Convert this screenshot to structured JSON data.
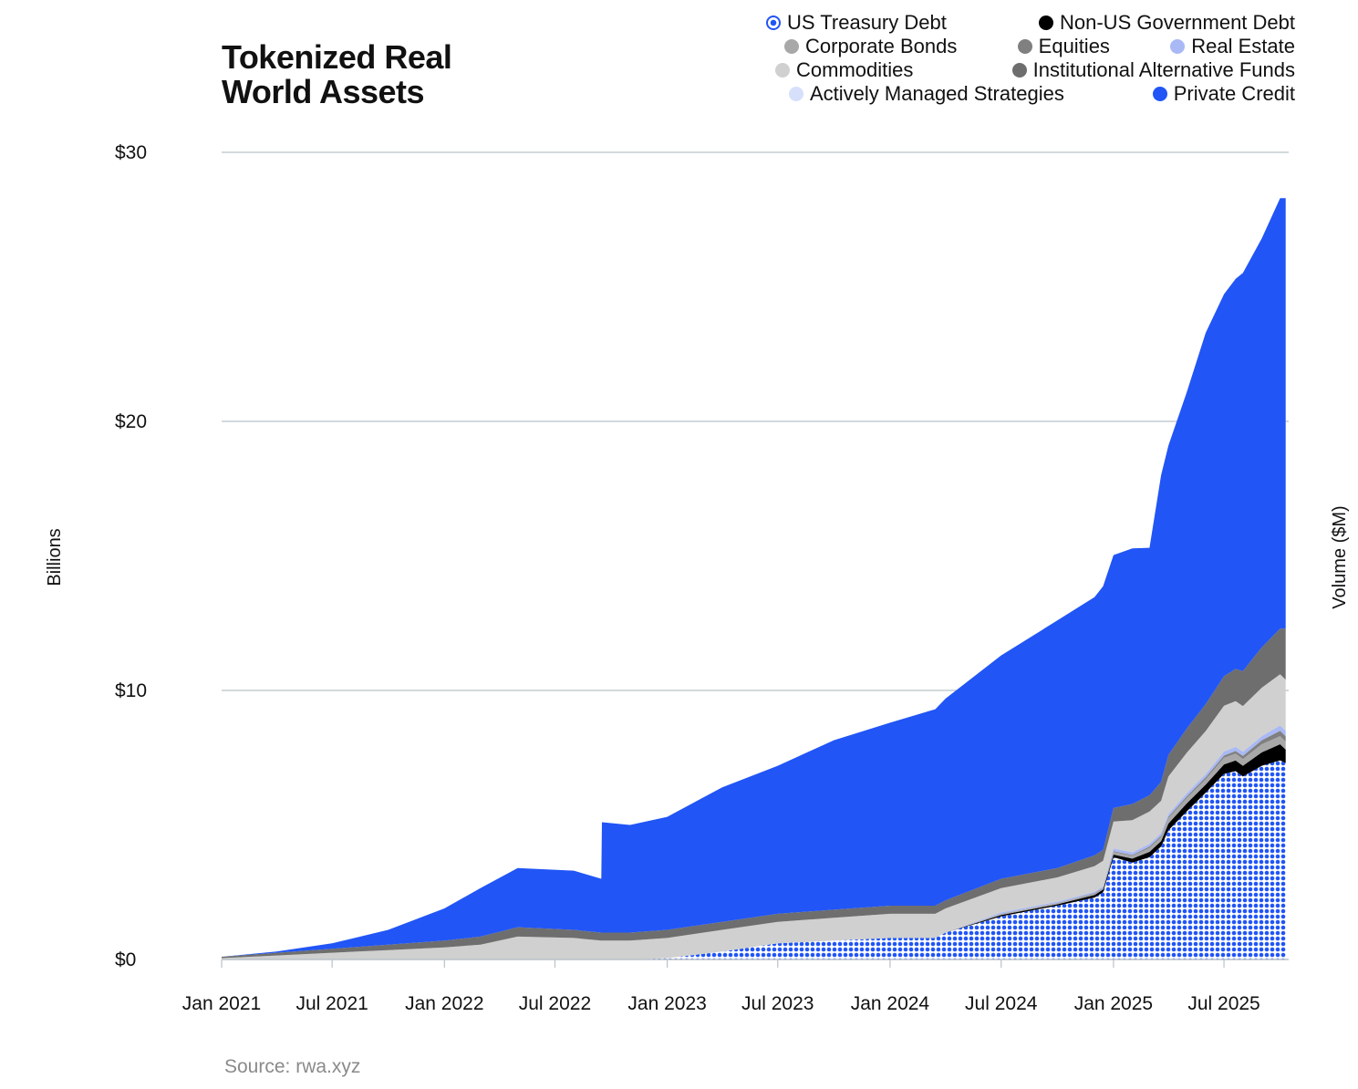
{
  "chart_data": {
    "type": "area",
    "title": [
      "Tokenized Real",
      "World Assets"
    ],
    "ylabel": "Billions",
    "y2label": "Volume ($M)",
    "source": "Source: rwa.xyz",
    "ylim": [
      0,
      30
    ],
    "yticks": [
      {
        "value": 0,
        "label": "$0"
      },
      {
        "value": 10,
        "label": "$10"
      },
      {
        "value": 20,
        "label": "$20"
      },
      {
        "value": 30,
        "label": "$30"
      }
    ],
    "xlim": [
      "2021-01-01",
      "2025-10-15"
    ],
    "xticks": [
      {
        "date": "2021-01-01",
        "label": "Jan 2021"
      },
      {
        "date": "2021-07-01",
        "label": "Jul 2021"
      },
      {
        "date": "2022-01-01",
        "label": "Jan 2022"
      },
      {
        "date": "2022-07-01",
        "label": "Jul 2022"
      },
      {
        "date": "2023-01-01",
        "label": "Jan 2023"
      },
      {
        "date": "2023-07-01",
        "label": "Jul 2023"
      },
      {
        "date": "2024-01-01",
        "label": "Jan 2024"
      },
      {
        "date": "2024-07-01",
        "label": "Jul 2024"
      },
      {
        "date": "2025-01-01",
        "label": "Jan 2025"
      },
      {
        "date": "2025-07-01",
        "label": "Jul 2025"
      }
    ],
    "grid": true,
    "legend_position": "top-right",
    "stacked": true,
    "x": [
      "2021-01-01",
      "2021-04-01",
      "2021-07-01",
      "2021-10-01",
      "2022-01-01",
      "2022-03-01",
      "2022-05-01",
      "2022-08-01",
      "2022-09-15",
      "2022-09-16",
      "2022-11-01",
      "2023-01-01",
      "2023-04-01",
      "2023-07-01",
      "2023-10-01",
      "2024-01-01",
      "2024-03-15",
      "2024-04-01",
      "2024-07-01",
      "2024-10-01",
      "2024-12-01",
      "2024-12-15",
      "2025-01-01",
      "2025-02-01",
      "2025-03-01",
      "2025-03-20",
      "2025-04-01",
      "2025-05-01",
      "2025-06-01",
      "2025-07-01",
      "2025-07-20",
      "2025-08-01",
      "2025-09-01",
      "2025-10-01",
      "2025-10-10"
    ],
    "series": [
      {
        "name": "US Treasury Debt",
        "color": "#2155f5",
        "pattern": "dots",
        "values": [
          0,
          0,
          0,
          0,
          0,
          0,
          0,
          0,
          0,
          0,
          0,
          0.05,
          0.3,
          0.6,
          0.7,
          0.8,
          0.8,
          1.0,
          1.6,
          2.0,
          2.3,
          2.5,
          3.8,
          3.6,
          3.8,
          4.2,
          4.8,
          5.5,
          6.2,
          6.9,
          7.0,
          6.8,
          7.2,
          7.4,
          7.3
        ]
      },
      {
        "name": "Non-US Government Debt",
        "color": "#000000",
        "values": [
          0,
          0,
          0,
          0,
          0,
          0,
          0,
          0,
          0,
          0,
          0,
          0,
          0,
          0,
          0,
          0,
          0,
          0,
          0.05,
          0.05,
          0.1,
          0.1,
          0.1,
          0.15,
          0.2,
          0.2,
          0.25,
          0.3,
          0.3,
          0.35,
          0.4,
          0.4,
          0.5,
          0.6,
          0.5
        ]
      },
      {
        "name": "Corporate Bonds",
        "color": "#a8a8a8",
        "values": [
          0,
          0,
          0,
          0,
          0,
          0,
          0,
          0,
          0,
          0,
          0,
          0,
          0,
          0,
          0,
          0,
          0,
          0,
          0.05,
          0.05,
          0.05,
          0.05,
          0.1,
          0.1,
          0.15,
          0.15,
          0.2,
          0.2,
          0.2,
          0.25,
          0.25,
          0.25,
          0.3,
          0.3,
          0.3
        ]
      },
      {
        "name": "Equities",
        "color": "#808080",
        "values": [
          0,
          0,
          0,
          0,
          0,
          0,
          0,
          0,
          0,
          0,
          0,
          0,
          0,
          0,
          0,
          0,
          0,
          0,
          0,
          0,
          0.02,
          0.02,
          0.03,
          0.03,
          0.05,
          0.05,
          0.05,
          0.06,
          0.07,
          0.08,
          0.1,
          0.12,
          0.15,
          0.2,
          0.2
        ]
      },
      {
        "name": "Real Estate",
        "color": "#a9b9f5",
        "values": [
          0,
          0,
          0,
          0,
          0,
          0,
          0,
          0,
          0,
          0,
          0,
          0,
          0,
          0,
          0,
          0,
          0,
          0,
          0.05,
          0.05,
          0.05,
          0.05,
          0.1,
          0.1,
          0.1,
          0.1,
          0.1,
          0.12,
          0.12,
          0.15,
          0.15,
          0.15,
          0.15,
          0.2,
          0.2
        ]
      },
      {
        "name": "Commodities",
        "color": "#d0d0d0",
        "values": [
          0.05,
          0.15,
          0.25,
          0.35,
          0.45,
          0.55,
          0.85,
          0.8,
          0.7,
          0.7,
          0.7,
          0.75,
          0.8,
          0.8,
          0.85,
          0.9,
          0.9,
          0.9,
          0.9,
          0.9,
          0.95,
          0.95,
          1.0,
          1.2,
          1.2,
          1.2,
          1.4,
          1.5,
          1.6,
          1.7,
          1.7,
          1.7,
          1.8,
          1.9,
          1.9
        ]
      },
      {
        "name": "Institutional Alternative Funds",
        "color": "#6e6e6e",
        "values": [
          0.05,
          0.1,
          0.15,
          0.2,
          0.25,
          0.3,
          0.35,
          0.3,
          0.3,
          0.3,
          0.3,
          0.3,
          0.3,
          0.3,
          0.3,
          0.3,
          0.3,
          0.3,
          0.35,
          0.35,
          0.4,
          0.4,
          0.5,
          0.6,
          0.6,
          0.7,
          0.8,
          0.9,
          1.0,
          1.1,
          1.2,
          1.3,
          1.5,
          1.7,
          1.9
        ]
      },
      {
        "name": "Actively Managed Strategies",
        "color": "#d6e0fb",
        "values": [
          0,
          0,
          0,
          0,
          0,
          0,
          0,
          0,
          0,
          0,
          0,
          0,
          0,
          0,
          0,
          0,
          0,
          0,
          0,
          0,
          0,
          0,
          0,
          0,
          0,
          0,
          0,
          0,
          0,
          0,
          0,
          0,
          0,
          0,
          0
        ]
      },
      {
        "name": "Private Credit",
        "color": "#2155f5",
        "values": [
          0,
          0.05,
          0.2,
          0.55,
          1.2,
          1.8,
          2.2,
          2.2,
          2.0,
          4.1,
          4.0,
          4.2,
          5.0,
          5.5,
          6.3,
          6.8,
          7.3,
          7.5,
          8.3,
          9.2,
          9.6,
          9.8,
          9.4,
          9.5,
          9.2,
          11.4,
          11.5,
          12.5,
          13.8,
          14.2,
          14.5,
          14.8,
          15.2,
          16.0,
          16.0
        ]
      }
    ]
  }
}
